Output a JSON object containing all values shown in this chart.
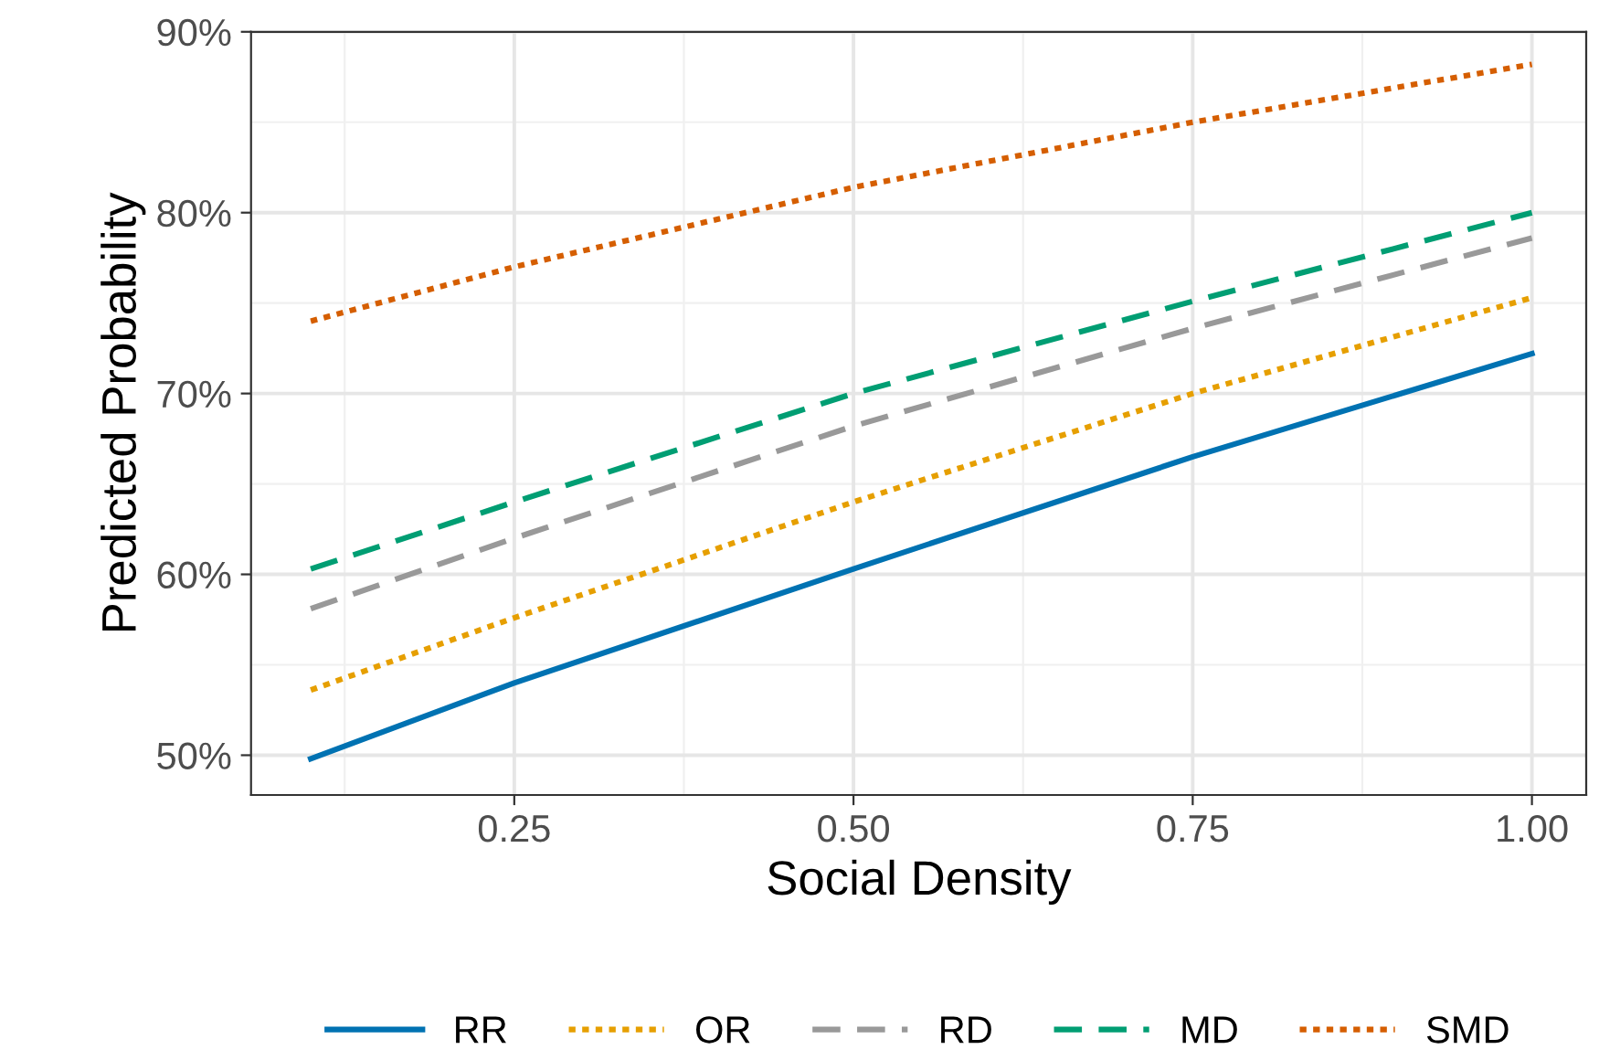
{
  "chart_data": {
    "type": "line",
    "xlabel": "Social Density",
    "ylabel": "Predicted Probability",
    "x": [
      0.1,
      0.25,
      0.5,
      0.75,
      1.0
    ],
    "series": [
      {
        "name": "RR",
        "color": "#0072b2",
        "line_style": "solid",
        "values": [
          49.8,
          54.0,
          60.3,
          66.5,
          72.2
        ]
      },
      {
        "name": "OR",
        "color": "#e69f00",
        "line_style": "dotted",
        "values": [
          53.6,
          57.6,
          64.0,
          70.0,
          75.3
        ]
      },
      {
        "name": "RD",
        "color": "#999999",
        "line_style": "dashed",
        "values": [
          58.1,
          62.0,
          68.2,
          73.6,
          78.6
        ]
      },
      {
        "name": "MD",
        "color": "#009e73",
        "line_style": "dashed",
        "values": [
          60.3,
          64.0,
          70.0,
          75.1,
          80.0
        ]
      },
      {
        "name": "SMD",
        "color": "#d55e00",
        "line_style": "dotted",
        "values": [
          74.0,
          77.0,
          81.4,
          85.0,
          88.2
        ]
      }
    ],
    "xlim": [
      0.056,
      1.04
    ],
    "ylim": [
      47.8,
      90
    ],
    "xticks": [
      {
        "value": 0.25,
        "label": "0.25"
      },
      {
        "value": 0.5,
        "label": "0.50"
      },
      {
        "value": 0.75,
        "label": "0.75"
      },
      {
        "value": 1.0,
        "label": "1.00"
      }
    ],
    "yticks": [
      {
        "value": 50,
        "label": "50%"
      },
      {
        "value": 60,
        "label": "60%"
      },
      {
        "value": 70,
        "label": "70%"
      },
      {
        "value": 80,
        "label": "80%"
      },
      {
        "value": 90,
        "label": "90%"
      }
    ],
    "grid": true,
    "legend": "bottom",
    "marker": "none"
  }
}
